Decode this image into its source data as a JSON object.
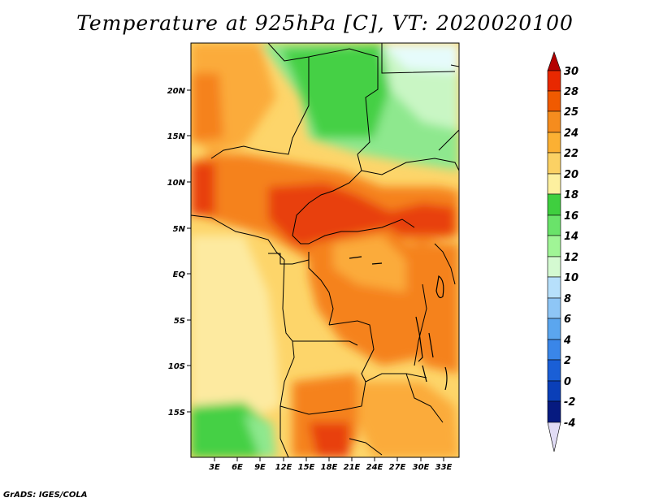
{
  "title": "Temperature at 925hPa [C], VT: 2020020100",
  "credit": "GrADS: IGES/COLA",
  "axes": {
    "lat_ticks": [
      "20N",
      "15N",
      "10N",
      "5N",
      "EQ",
      "5S",
      "10S",
      "15S"
    ],
    "lon_ticks": [
      "3E",
      "6E",
      "9E",
      "12E",
      "15E",
      "18E",
      "21E",
      "24E",
      "27E",
      "30E",
      "33E"
    ]
  },
  "colorbar": {
    "labels": [
      "30",
      "28",
      "25",
      "24",
      "22",
      "20",
      "18",
      "16",
      "14",
      "12",
      "10",
      "8",
      "6",
      "4",
      "2",
      "0",
      "-2",
      "-4"
    ],
    "colors": [
      "#e82800",
      "#f05a00",
      "#f58c1e",
      "#fbb033",
      "#fbd164",
      "#fdf09f",
      "#3fcf3f",
      "#6ae36a",
      "#a0f596",
      "#d4fad1",
      "#b7e0fb",
      "#8ec6f6",
      "#5ba6ef",
      "#3a86e8",
      "#1a5fd6",
      "#0a3fb8",
      "#061a80",
      "#e1dcf5"
    ],
    "top_arrow_color": "#b40000"
  },
  "colors": {
    "hot": "#e84010",
    "orange": "#f5821e",
    "lightorange": "#fbab3a",
    "yellow": "#fdd56a",
    "paleyellow": "#fdeaa0",
    "green": "#45d045",
    "lightgreen": "#8ee88e",
    "palegreen": "#c9f6c4",
    "cyan": "#e6fbfb"
  }
}
